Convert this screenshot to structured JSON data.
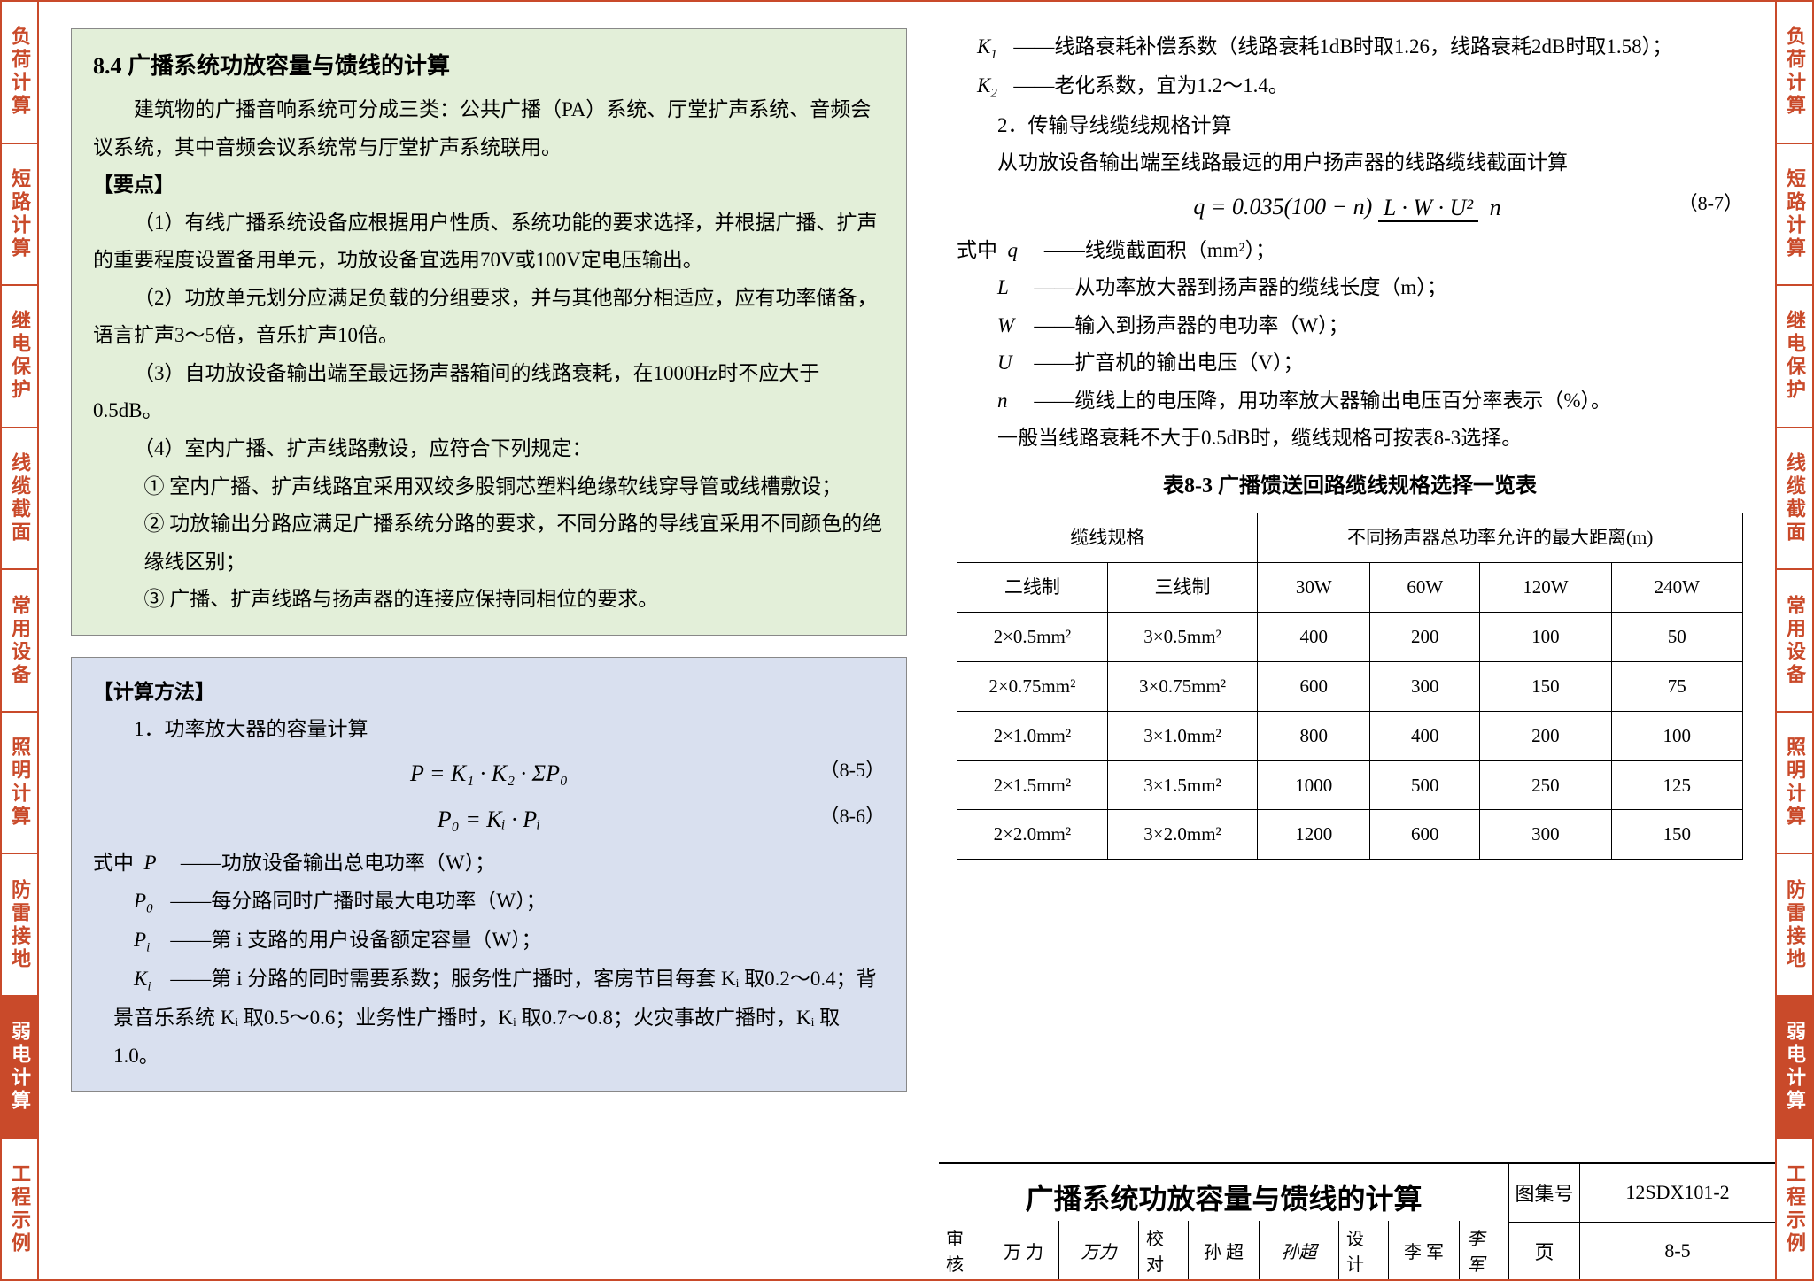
{
  "tabs": {
    "items": [
      "负荷计算",
      "短路计算",
      "继电保护",
      "线缆截面",
      "常用设备",
      "照明计算",
      "防雷接地",
      "弱电计算",
      "工程示例"
    ],
    "active_index": 7
  },
  "section": {
    "number": "8.4",
    "title": "广播系统功放容量与馈线的计算",
    "intro": "建筑物的广播音响系统可分成三类：公共广播（PA）系统、厅堂扩声系统、音频会议系统，其中音频会议系统常与厅堂扩声系统联用。",
    "points_h": "【要点】",
    "p1": "（1）有线广播系统设备应根据用户性质、系统功能的要求选择，并根据广播、扩声的重要程度设置备用单元，功放设备宜选用70V或100V定电压输出。",
    "p2": "（2）功放单元划分应满足负载的分组要求，并与其他部分相适应，应有功率储备，语言扩声3～5倍，音乐扩声10倍。",
    "p3": "（3）自功放设备输出端至最远扬声器箱间的线路衰耗，在1000Hz时不应大于0.5dB。",
    "p4": "（4）室内广播、扩声线路敷设，应符合下列规定：",
    "p4a": "① 室内广播、扩声线路宜采用双绞多股铜芯塑料绝缘软线穿导管或线槽敷设；",
    "p4b": "② 功放输出分路应满足广播系统分路的要求，不同分路的导线宜采用不同颜色的绝缘线区别；",
    "p4c": "③ 广播、扩声线路与扬声器的连接应保持同相位的要求。"
  },
  "calc": {
    "h": "【计算方法】",
    "s1": "1．功率放大器的容量计算",
    "eq85": "P = K₁ · K₂ · ΣP₀",
    "eq85n": "（8-5）",
    "eq86": "P₀ = Kᵢ · Pᵢ",
    "eq86n": "（8-6）",
    "where_label": "式中",
    "wP": "功放设备输出总电功率（W）；",
    "wP0": "每分路同时广播时最大电功率（W）；",
    "wPi": "第 i 支路的用户设备额定容量（W）；",
    "wKi": "第 i 分路的同时需要系数；服务性广播时，客房节目每套 Kᵢ 取0.2～0.4；背景音乐系统 Kᵢ 取0.5～0.6；业务性广播时，Kᵢ 取0.7～0.8；火灾事故广播时，Kᵢ 取1.0。"
  },
  "right": {
    "wK1": "线路衰耗补偿系数（线路衰耗1dB时取1.26，线路衰耗2dB时取1.58）；",
    "wK2": "老化系数，宜为1.2～1.4。",
    "s2": "2．传输导线缆线规格计算",
    "s2_desc": "从功放设备输出端至线路最远的用户扬声器的线路缆线截面计算",
    "eq87_pre": "q = 0.035(100 − n)",
    "eq87_num": "L · W · U²",
    "eq87_den": "n",
    "eq87n": "（8-7）",
    "where_label": "式中",
    "wq": "线缆截面积（mm²）；",
    "wL": "从功率放大器到扬声器的缆线长度（m）；",
    "wW": "输入到扬声器的电功率（W）；",
    "wU": "扩音机的输出电压（V）；",
    "wn": "缆线上的电压降，用功率放大器输出电压百分率表示（%）。",
    "note": "一般当线路衰耗不大于0.5dB时，缆线规格可按表8-3选择。"
  },
  "table": {
    "caption": "表8-3  广播馈送回路缆线规格选择一览表",
    "head1": "缆线规格",
    "head2": "不同扬声器总功率允许的最大距离(m)",
    "cols": [
      "二线制",
      "三线制",
      "30W",
      "60W",
      "120W",
      "240W"
    ],
    "rows": [
      [
        "2×0.5mm²",
        "3×0.5mm²",
        "400",
        "200",
        "100",
        "50"
      ],
      [
        "2×0.75mm²",
        "3×0.75mm²",
        "600",
        "300",
        "150",
        "75"
      ],
      [
        "2×1.0mm²",
        "3×1.0mm²",
        "800",
        "400",
        "200",
        "100"
      ],
      [
        "2×1.5mm²",
        "3×1.5mm²",
        "1000",
        "500",
        "250",
        "125"
      ],
      [
        "2×2.0mm²",
        "3×2.0mm²",
        "1200",
        "600",
        "300",
        "150"
      ]
    ]
  },
  "titleblock": {
    "title": "广播系统功放容量与馈线的计算",
    "set_label": "图集号",
    "set_no": "12SDX101-2",
    "page_label": "页",
    "page_no": "8-5",
    "sig": {
      "review_l": "审核",
      "review_n": "万 力",
      "review_s": "万力",
      "check_l": "校对",
      "check_n": "孙 超",
      "check_s": "孙超",
      "design_l": "设计",
      "design_n": "李 军",
      "design_s": "李军"
    }
  }
}
